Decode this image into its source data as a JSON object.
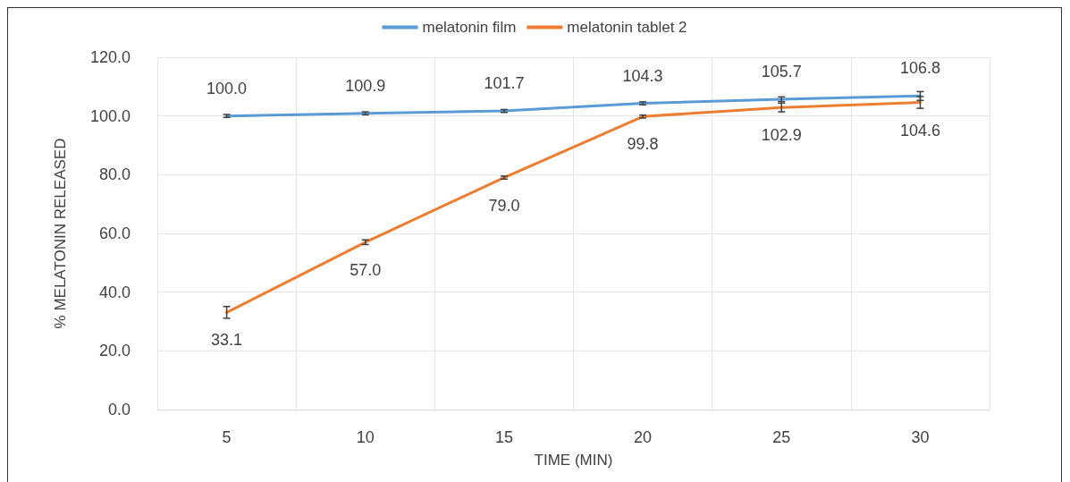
{
  "chart_data": {
    "type": "line",
    "xlabel": "TIME (MIN)",
    "ylabel": "% MELATONIN RELEASED",
    "categories": [
      "5",
      "10",
      "15",
      "20",
      "25",
      "30"
    ],
    "series": [
      {
        "name": "melatonin film",
        "color": "#5b9bd5",
        "values": [
          100.0,
          100.9,
          101.7,
          104.3,
          105.7,
          106.8
        ],
        "value_labels": [
          "100.0",
          "100.9",
          "101.7",
          "104.3",
          "105.7",
          "106.8"
        ],
        "errors": [
          0.5,
          0.5,
          0.5,
          0.5,
          0.8,
          1.5
        ]
      },
      {
        "name": "melatonin tablet 2",
        "color": "#ed7d31",
        "values": [
          33.1,
          57.0,
          79.0,
          99.8,
          102.9,
          104.6
        ],
        "value_labels": [
          "33.1",
          "57.0",
          "79.0",
          "99.8",
          "102.9",
          "104.6"
        ],
        "errors": [
          2.0,
          0.8,
          0.5,
          0.5,
          1.5,
          2.0
        ]
      }
    ],
    "ylim": [
      0,
      120
    ],
    "yticks": [
      {
        "value": 0,
        "label": "0.0"
      },
      {
        "value": 20,
        "label": "20.0"
      },
      {
        "value": 40,
        "label": "40.0"
      },
      {
        "value": 60,
        "label": "60.0"
      },
      {
        "value": 80,
        "label": "80.0"
      },
      {
        "value": 100,
        "label": "100.0"
      },
      {
        "value": 120,
        "label": "120.0"
      }
    ],
    "grid": true,
    "legend": "top",
    "marker": "none",
    "line_style": "solid"
  }
}
